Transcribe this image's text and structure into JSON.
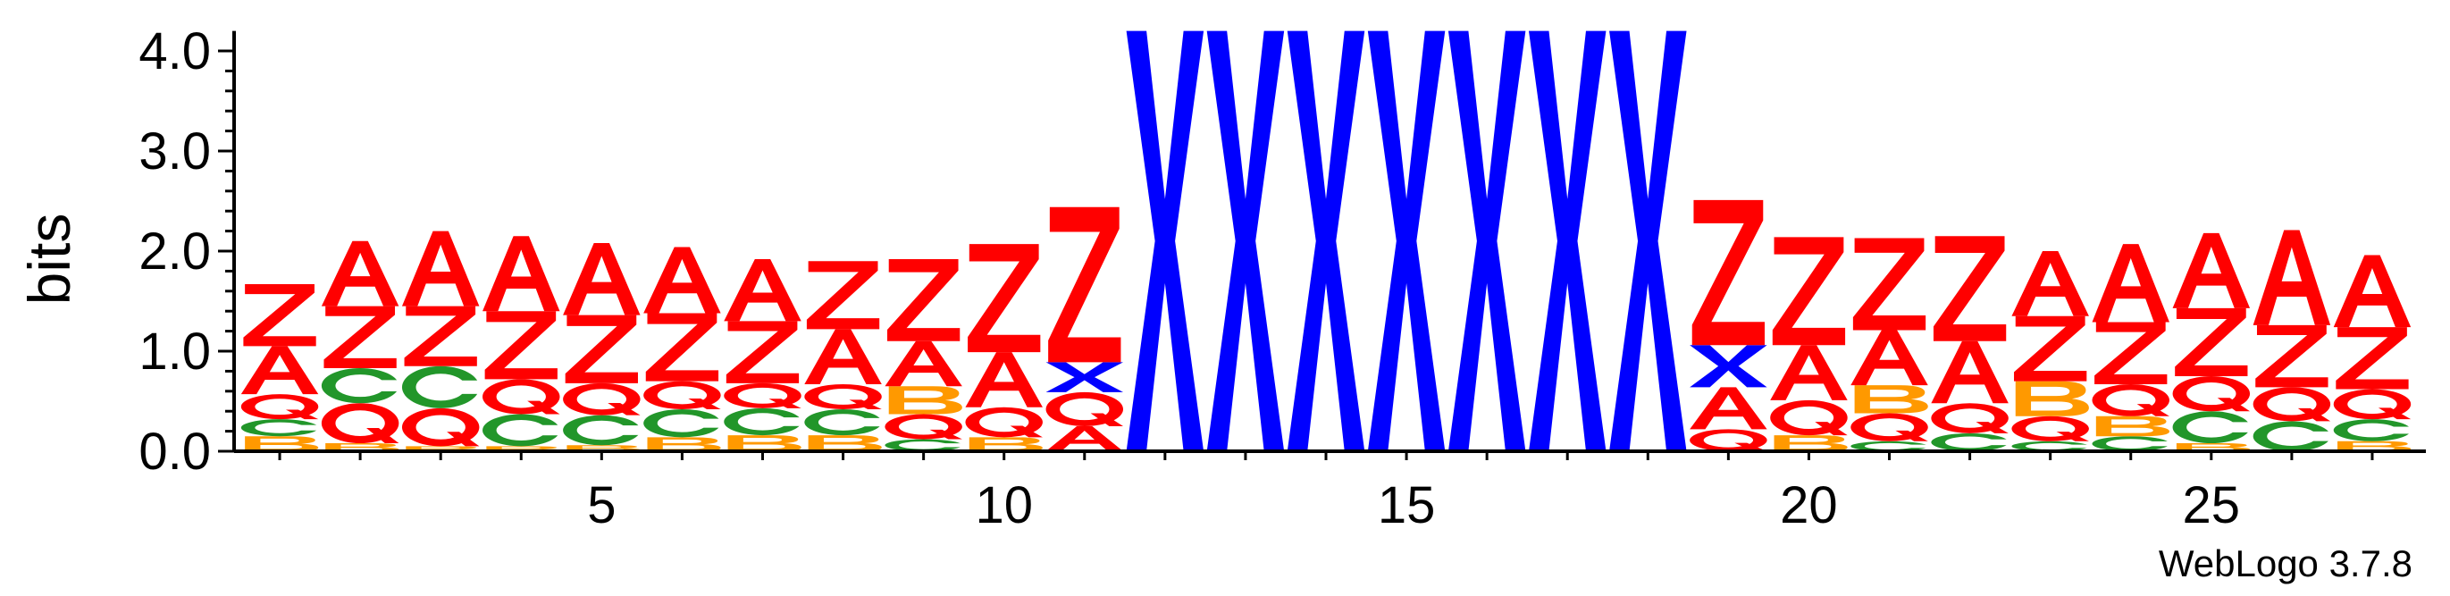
{
  "chart_data": {
    "type": "sequence-logo",
    "ylabel": "bits",
    "ylim": [
      0,
      4.2
    ],
    "yticks": [
      "0.0",
      "1.0",
      "2.0",
      "3.0",
      "4.0"
    ],
    "ytick_values": [
      0,
      1,
      2,
      3,
      4
    ],
    "xticks": [
      "5",
      "10",
      "15",
      "20",
      "25"
    ],
    "xtick_values": [
      5,
      10,
      15,
      20,
      25
    ],
    "positions": 27,
    "footer": "WebLogo 3.7.8",
    "colors": {
      "A": "#ff0000",
      "Z": "#ff0000",
      "Q": "#ff0000",
      "C": "#22962a",
      "B": "#ff9900",
      "X": "#0000ff"
    },
    "columns": [
      {
        "pos": 1,
        "stack": [
          [
            "B",
            0.15
          ],
          [
            "C",
            0.17
          ],
          [
            "Q",
            0.25
          ],
          [
            "A",
            0.48
          ],
          [
            "Z",
            0.62
          ]
        ]
      },
      {
        "pos": 2,
        "stack": [
          [
            "B",
            0.08
          ],
          [
            "Q",
            0.4
          ],
          [
            "C",
            0.35
          ],
          [
            "Z",
            0.62
          ],
          [
            "A",
            0.65
          ]
        ]
      },
      {
        "pos": 3,
        "stack": [
          [
            "B",
            0.05
          ],
          [
            "Q",
            0.38
          ],
          [
            "C",
            0.42
          ],
          [
            "Z",
            0.6
          ],
          [
            "A",
            0.75
          ]
        ]
      },
      {
        "pos": 4,
        "stack": [
          [
            "B",
            0.05
          ],
          [
            "C",
            0.32
          ],
          [
            "Q",
            0.35
          ],
          [
            "Z",
            0.68
          ],
          [
            "A",
            0.75
          ]
        ]
      },
      {
        "pos": 5,
        "stack": [
          [
            "B",
            0.06
          ],
          [
            "C",
            0.3
          ],
          [
            "Q",
            0.32
          ],
          [
            "Z",
            0.68
          ],
          [
            "A",
            0.72
          ]
        ]
      },
      {
        "pos": 6,
        "stack": [
          [
            "B",
            0.14
          ],
          [
            "C",
            0.28
          ],
          [
            "Q",
            0.28
          ],
          [
            "Z",
            0.68
          ],
          [
            "A",
            0.66
          ]
        ]
      },
      {
        "pos": 7,
        "stack": [
          [
            "B",
            0.16
          ],
          [
            "C",
            0.27
          ],
          [
            "Q",
            0.25
          ],
          [
            "Z",
            0.62
          ],
          [
            "A",
            0.62
          ]
        ]
      },
      {
        "pos": 8,
        "stack": [
          [
            "B",
            0.16
          ],
          [
            "C",
            0.26
          ],
          [
            "Q",
            0.25
          ],
          [
            "A",
            0.55
          ],
          [
            "Z",
            0.68
          ]
        ]
      },
      {
        "pos": 9,
        "stack": [
          [
            "C",
            0.12
          ],
          [
            "Q",
            0.25
          ],
          [
            "B",
            0.28
          ],
          [
            "A",
            0.45
          ],
          [
            "Z",
            0.82
          ]
        ]
      },
      {
        "pos": 10,
        "stack": [
          [
            "B",
            0.14
          ],
          [
            "Q",
            0.3
          ],
          [
            "A",
            0.55
          ],
          [
            "Z",
            1.08
          ]
        ]
      },
      {
        "pos": 11,
        "stack": [
          [
            "A",
            0.25
          ],
          [
            "Q",
            0.34
          ],
          [
            "X",
            0.3
          ],
          [
            "Z",
            1.55
          ]
        ]
      },
      {
        "pos": 12,
        "stack": [
          [
            "X",
            4.2
          ]
        ]
      },
      {
        "pos": 13,
        "stack": [
          [
            "X",
            4.2
          ]
        ]
      },
      {
        "pos": 14,
        "stack": [
          [
            "X",
            4.2
          ]
        ]
      },
      {
        "pos": 15,
        "stack": [
          [
            "X",
            4.2
          ]
        ]
      },
      {
        "pos": 16,
        "stack": [
          [
            "X",
            4.2
          ]
        ]
      },
      {
        "pos": 17,
        "stack": [
          [
            "X",
            4.2
          ]
        ]
      },
      {
        "pos": 18,
        "stack": [
          [
            "X",
            4.2
          ]
        ]
      },
      {
        "pos": 19,
        "stack": [
          [
            "Q",
            0.22
          ],
          [
            "A",
            0.42
          ],
          [
            "X",
            0.42
          ],
          [
            "Z",
            1.45
          ]
        ]
      },
      {
        "pos": 20,
        "stack": [
          [
            "B",
            0.16
          ],
          [
            "Q",
            0.35
          ],
          [
            "A",
            0.55
          ],
          [
            "Z",
            1.08
          ]
        ]
      },
      {
        "pos": 21,
        "stack": [
          [
            "C",
            0.1
          ],
          [
            "Q",
            0.28
          ],
          [
            "B",
            0.28
          ],
          [
            "A",
            0.55
          ],
          [
            "Z",
            0.92
          ]
        ]
      },
      {
        "pos": 22,
        "stack": [
          [
            "C",
            0.18
          ],
          [
            "Q",
            0.3
          ],
          [
            "A",
            0.62
          ],
          [
            "Z",
            1.05
          ]
        ]
      },
      {
        "pos": 23,
        "stack": [
          [
            "C",
            0.1
          ],
          [
            "Q",
            0.25
          ],
          [
            "B",
            0.35
          ],
          [
            "Z",
            0.65
          ],
          [
            "A",
            0.65
          ]
        ]
      },
      {
        "pos": 24,
        "stack": [
          [
            "C",
            0.15
          ],
          [
            "B",
            0.2
          ],
          [
            "Q",
            0.32
          ],
          [
            "Z",
            0.62
          ],
          [
            "A",
            0.78
          ]
        ]
      },
      {
        "pos": 25,
        "stack": [
          [
            "B",
            0.08
          ],
          [
            "C",
            0.32
          ],
          [
            "Q",
            0.35
          ],
          [
            "Z",
            0.68
          ],
          [
            "A",
            0.75
          ]
        ]
      },
      {
        "pos": 26,
        "stack": [
          [
            "C",
            0.3
          ],
          [
            "Q",
            0.34
          ],
          [
            "Z",
            0.62
          ],
          [
            "A",
            0.95
          ]
        ]
      },
      {
        "pos": 27,
        "stack": [
          [
            "B",
            0.1
          ],
          [
            "C",
            0.22
          ],
          [
            "Q",
            0.3
          ],
          [
            "Z",
            0.62
          ],
          [
            "A",
            0.72
          ]
        ]
      }
    ]
  }
}
